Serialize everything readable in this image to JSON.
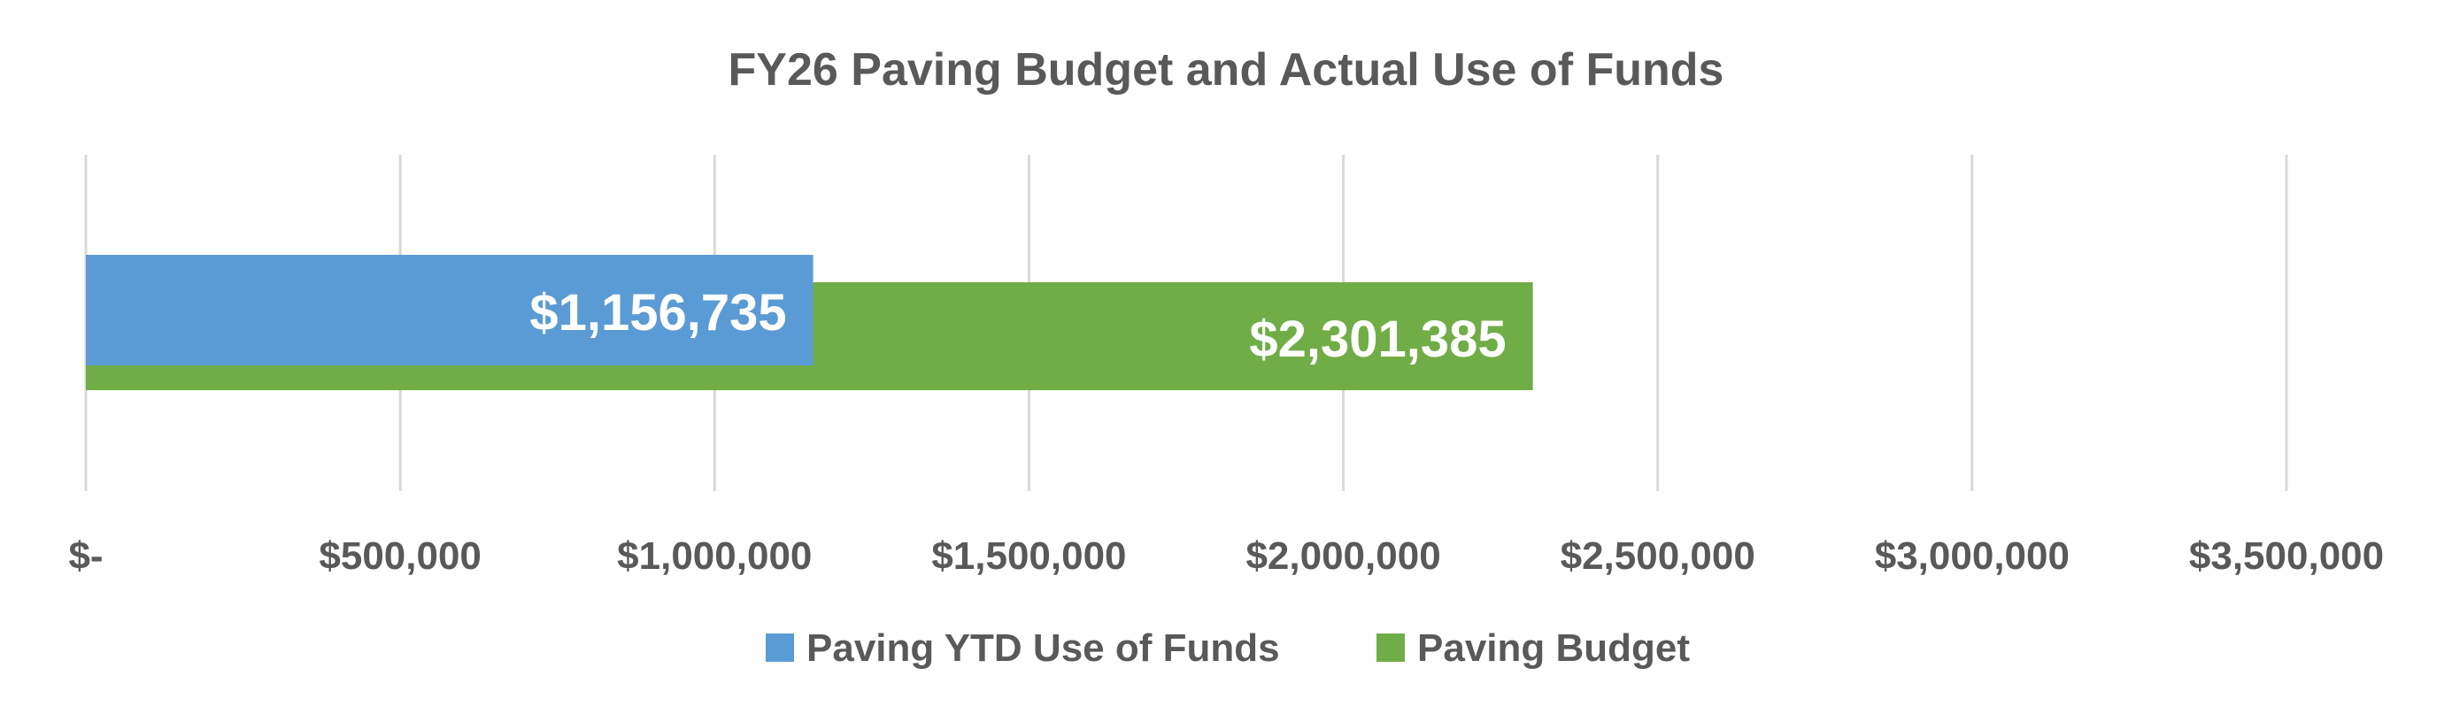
{
  "chart_data": {
    "type": "bar",
    "orientation": "horizontal",
    "title": "FY26 Paving Budget and Actual Use of Funds",
    "xlim": [
      0,
      3500000
    ],
    "tick_values": [
      0,
      500000,
      1000000,
      1500000,
      2000000,
      2500000,
      3000000,
      3500000
    ],
    "tick_labels": [
      "$-",
      "$500,000",
      "$1,000,000",
      "$1,500,000",
      "$2,000,000",
      "$2,500,000",
      "$3,000,000",
      "$3,500,000"
    ],
    "grid": true,
    "legend_position": "bottom",
    "series": [
      {
        "name": "Paving YTD Use of Funds",
        "value": 1156735,
        "label": "$1,156,735",
        "color": "#5b9bd5"
      },
      {
        "name": "Paving Budget",
        "value": 2301385,
        "label": "$2,301,385",
        "color": "#70ad47"
      }
    ]
  }
}
